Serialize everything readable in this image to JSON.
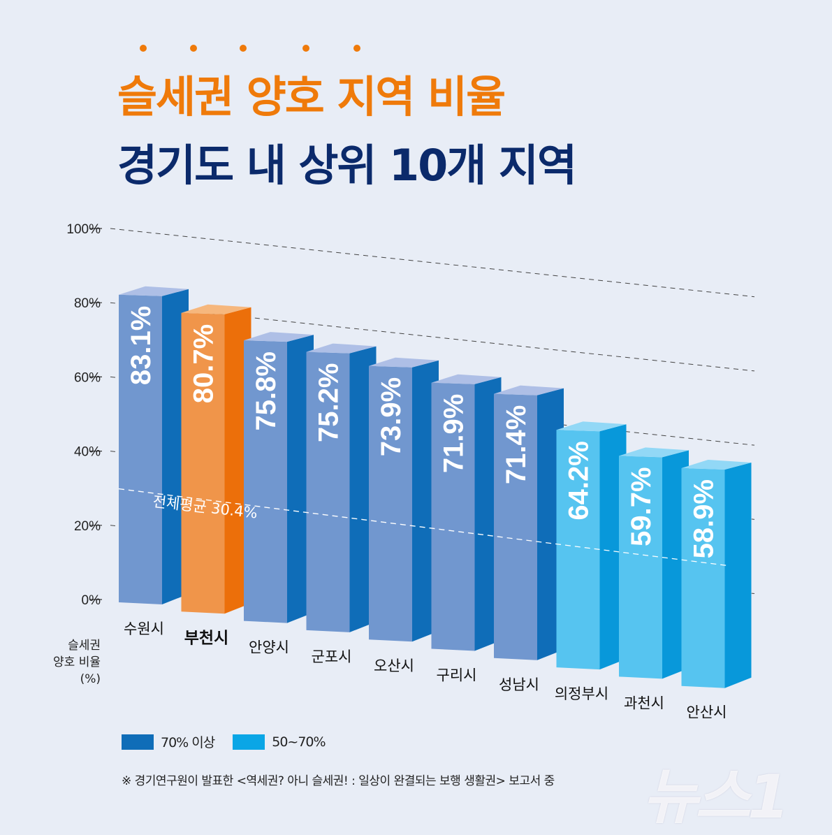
{
  "header": {
    "title_line1": "슬세권 양호 지역 비율",
    "title_line2": "경기도 내 상위 10개 지역"
  },
  "colors": {
    "title_orange": "#ef7a0a",
    "title_navy": "#0b2a6b",
    "above70": "#0f6db8",
    "range50_70": "#0aa6e6",
    "highlight": "#ec6f0a"
  },
  "chart_data": {
    "type": "bar",
    "title": "슬세권 양호 지역 비율 경기도 내 상위 10개 지역",
    "ylabel": "슬세권 양호 비율 (%)",
    "ylim": [
      0,
      100
    ],
    "yticks": [
      "0%",
      "20%",
      "40%",
      "60%",
      "80%",
      "100%"
    ],
    "grid": true,
    "categories": [
      "수원시",
      "부천시",
      "안양시",
      "군포시",
      "오산시",
      "구리시",
      "성남시",
      "의정부시",
      "과천시",
      "안산시"
    ],
    "values": [
      83.1,
      80.7,
      75.8,
      75.2,
      73.9,
      71.9,
      71.4,
      64.2,
      59.7,
      58.9
    ],
    "value_labels": [
      "83.1%",
      "80.7%",
      "75.8%",
      "75.2%",
      "73.9%",
      "71.9%",
      "71.4%",
      "64.2%",
      "59.7%",
      "58.9%"
    ],
    "groups": [
      "70% 이상",
      "70% 이상",
      "70% 이상",
      "70% 이상",
      "70% 이상",
      "70% 이상",
      "70% 이상",
      "50~70%",
      "50~70%",
      "50~70%"
    ],
    "highlighted": "부천시",
    "reference_line": {
      "label": "전체평균 30.4%",
      "value": 30.4
    },
    "legend": [
      {
        "label": "70% 이상",
        "color": "#0f6db8"
      },
      {
        "label": "50~70%",
        "color": "#0aa6e6"
      }
    ],
    "legend_placement": "bottom-left"
  },
  "y_axis_label": [
    "슬세권",
    "양호 비율",
    "(%)"
  ],
  "footnote": "※ 경기연구원이 발표한 <역세권? 아니 슬세권! : 일상이 완결되는 보행 생활권> 보고서 중",
  "watermark": "뉴스1"
}
